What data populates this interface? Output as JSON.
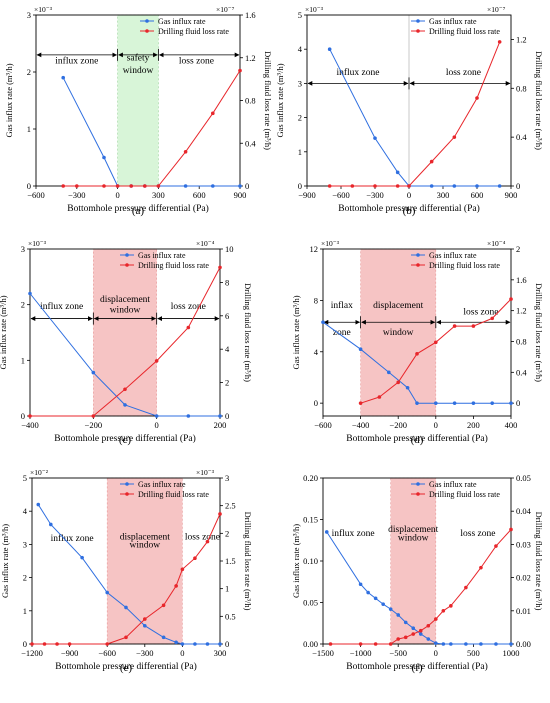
{
  "colors": {
    "gas": "#2f6fe0",
    "fluid": "#e8262b",
    "safety_shade": "#d8f5d8",
    "displacement_shade": "#f6c4c4",
    "axis": "#000000"
  },
  "chart_data": [
    {
      "id": "a",
      "type": "line",
      "caption": "(a)",
      "xlabel": "Bottomhole pressure differential (Pa)",
      "ylabel_left": "Gas influx rate (m³/h)",
      "ylabel_right": "Drilling fluid loss rate (m³/h)",
      "y_left_exp": "×10⁻³",
      "y_right_exp": "×10⁻⁷",
      "xlim": [
        -600,
        900
      ],
      "xticks": [
        -600,
        -300,
        0,
        300,
        600,
        900
      ],
      "ylim_left": [
        0,
        3
      ],
      "yticks_left": [
        0,
        1,
        2,
        3
      ],
      "ylim_right": [
        0,
        1.6
      ],
      "yticks_right": [
        0,
        0.4,
        0.8,
        1.2,
        1.6
      ],
      "shade": {
        "kind": "safety",
        "x": [
          0,
          300
        ]
      },
      "series": [
        {
          "name": "Gas influx rate",
          "axis": "left",
          "x": [
            -400,
            -100,
            0,
            100,
            200,
            300,
            500,
            700,
            900
          ],
          "y": [
            1.9,
            0.5,
            0,
            0,
            0,
            0,
            0,
            0,
            0
          ]
        },
        {
          "name": "Drilling fluid loss rate",
          "axis": "right",
          "x": [
            -400,
            -300,
            -100,
            0,
            100,
            200,
            300,
            500,
            700,
            900
          ],
          "y": [
            0,
            0,
            0,
            0,
            0,
            0,
            0,
            0.32,
            0.68,
            1.08
          ]
        }
      ],
      "arrow_rows": [
        {
          "y": 2.3,
          "xs": [
            -600,
            0,
            300,
            900
          ]
        }
      ],
      "zone_labels": [
        {
          "text": "influx zone",
          "x": -300,
          "y": 2.15
        },
        {
          "text": "safety",
          "x": 150,
          "y": 2.2
        },
        {
          "text": "window",
          "x": 150,
          "y": 1.98
        },
        {
          "text": "loss zone",
          "x": 580,
          "y": 2.15
        }
      ]
    },
    {
      "id": "b",
      "type": "line",
      "caption": "(b)",
      "xlabel": "Bottomhole pressure differential (Pa)",
      "ylabel_left": "Gas influx rate (m³/h)",
      "ylabel_right": "Drilling fluid loss rate (m³/h)",
      "y_left_exp": "×10⁻³",
      "y_right_exp": "×10⁻⁷",
      "xlim": [
        -900,
        900
      ],
      "xticks": [
        -900,
        -600,
        -300,
        0,
        300,
        600,
        900
      ],
      "ylim_left": [
        0,
        5
      ],
      "yticks_left": [
        0,
        1,
        2,
        3,
        4,
        5
      ],
      "ylim_right": [
        0,
        1.4
      ],
      "yticks_right": [
        0,
        0.4,
        0.8,
        1.2
      ],
      "shade": {
        "kind": "line",
        "x": [
          0,
          0
        ]
      },
      "series": [
        {
          "name": "Gas influx rate",
          "axis": "left",
          "x": [
            -700,
            -300,
            -100,
            0,
            200,
            400,
            600,
            800
          ],
          "y": [
            4.0,
            1.4,
            0.4,
            0,
            0,
            0,
            0,
            0
          ]
        },
        {
          "name": "Drilling fluid loss rate",
          "axis": "right",
          "x": [
            -700,
            -500,
            -300,
            -100,
            0,
            200,
            400,
            600,
            800
          ],
          "y": [
            0,
            0,
            0,
            0,
            0,
            0.2,
            0.4,
            0.72,
            1.18
          ]
        }
      ],
      "arrow_rows": [
        {
          "y": 3.0,
          "xs": [
            -900,
            0,
            900
          ]
        }
      ],
      "zone_labels": [
        {
          "text": "influx zone",
          "x": -450,
          "y": 3.25
        },
        {
          "text": "loss zone",
          "x": 480,
          "y": 3.25
        }
      ]
    },
    {
      "id": "c",
      "type": "line",
      "caption": "(c)",
      "xlabel": "Bottomhole pressure differential (Pa)",
      "ylabel_left": "Gas influx rate (m³/h)",
      "ylabel_right": "Drilling fluid loss rate (m³/h)",
      "y_left_exp": "×10⁻³",
      "y_right_exp": "×10⁻⁴",
      "xlim": [
        -400,
        200
      ],
      "xticks": [
        -400,
        -200,
        0,
        200
      ],
      "ylim_left": [
        0,
        3
      ],
      "yticks_left": [
        0,
        1,
        2,
        3
      ],
      "ylim_right": [
        0,
        10
      ],
      "yticks_right": [
        0,
        2,
        4,
        6,
        8,
        10
      ],
      "shade": {
        "kind": "displacement",
        "x": [
          -200,
          0
        ]
      },
      "series": [
        {
          "name": "Gas influx rate",
          "axis": "left",
          "x": [
            -400,
            -200,
            -100,
            0,
            100,
            200
          ],
          "y": [
            2.2,
            0.78,
            0.2,
            0,
            0,
            0
          ]
        },
        {
          "name": "Drilling fluid loss rate",
          "axis": "right",
          "x": [
            -400,
            -200,
            -100,
            0,
            100,
            200
          ],
          "y": [
            0,
            0,
            1.6,
            3.3,
            5.3,
            8.9
          ]
        }
      ],
      "arrow_rows": [
        {
          "y": 1.75,
          "xs": [
            -400,
            -200,
            0,
            200
          ]
        }
      ],
      "zone_labels": [
        {
          "text": "influx zone",
          "x": -300,
          "y": 1.92
        },
        {
          "text": "displacement",
          "x": -100,
          "y": 2.05
        },
        {
          "text": "window",
          "x": -100,
          "y": 1.86
        },
        {
          "text": "loss zone",
          "x": 100,
          "y": 1.92
        }
      ]
    },
    {
      "id": "d",
      "type": "line",
      "caption": "(d)",
      "xlabel": "Bottomhole pressure differential (Pa)",
      "ylabel_left": "Gas influx rate (m³/h)",
      "ylabel_right": "Drilling fluid loss rate (m³/h)",
      "y_left_exp": "×10⁻³",
      "y_right_exp": "×10⁻⁴",
      "xlim": [
        -600,
        400
      ],
      "xticks": [
        -600,
        -400,
        -200,
        0,
        200,
        400
      ],
      "ylim_left": [
        -1,
        12
      ],
      "yticks_left": [
        0,
        4,
        8,
        12
      ],
      "ylim_right": [
        -0.166667,
        2.0
      ],
      "yticks_right": [
        0,
        0.4,
        0.8,
        1.2,
        1.6,
        2.0
      ],
      "shade": {
        "kind": "displacement",
        "x": [
          -400,
          0
        ]
      },
      "series": [
        {
          "name": "Gas influx rate",
          "axis": "left",
          "x": [
            -600,
            -400,
            -250,
            -150,
            -100,
            0,
            100,
            200,
            300,
            400
          ],
          "y": [
            6.3,
            4.2,
            2.4,
            1.2,
            0,
            0,
            0,
            0,
            0,
            0
          ]
        },
        {
          "name": "Drilling fluid loss rate",
          "axis": "right",
          "x": [
            -400,
            -300,
            -200,
            -100,
            0,
            100,
            200,
            300,
            400
          ],
          "y": [
            0,
            0.08,
            0.27,
            0.64,
            0.79,
            1.0,
            1.0,
            1.1,
            1.35
          ]
        }
      ],
      "arrow_rows": [
        {
          "y": 6.3,
          "xs": [
            -600,
            -400,
            0,
            400
          ]
        }
      ],
      "zone_labels": [
        {
          "text": "inflax",
          "x": -500,
          "y": 7.4
        },
        {
          "text": "zone",
          "x": -500,
          "y": 5.3
        },
        {
          "text": "displacement",
          "x": -200,
          "y": 7.4
        },
        {
          "text": "window",
          "x": -200,
          "y": 5.3
        },
        {
          "text": "loss zone",
          "x": 240,
          "y": 6.9
        }
      ]
    },
    {
      "id": "e",
      "type": "line",
      "caption": "(e)",
      "xlabel": "Bottomhole pressure differential (Pa)",
      "ylabel_left": "Gas influx rate (m³/h)",
      "ylabel_right": "Drilling fluid loss rate (m³/h)",
      "y_left_exp": "×10⁻²",
      "y_right_exp": "×10⁻³",
      "xlim": [
        -1200,
        300
      ],
      "xticks": [
        -1200,
        -900,
        -600,
        -300,
        0,
        300
      ],
      "ylim_left": [
        0,
        5
      ],
      "yticks_left": [
        0,
        1,
        2,
        3,
        4,
        5
      ],
      "ylim_right": [
        0,
        3.0
      ],
      "yticks_right": [
        0,
        0.5,
        1.0,
        1.5,
        2.0,
        2.5,
        3.0
      ],
      "shade": {
        "kind": "displacement",
        "x": [
          -600,
          0
        ]
      },
      "series": [
        {
          "name": "Gas influx rate",
          "axis": "left",
          "x": [
            -1150,
            -1050,
            -800,
            -600,
            -450,
            -300,
            -150,
            -50,
            0,
            100,
            200,
            300
          ],
          "y": [
            4.2,
            3.6,
            2.6,
            1.55,
            1.1,
            0.55,
            0.2,
            0.05,
            0,
            0,
            0,
            0
          ]
        },
        {
          "name": "Drilling fluid loss rate",
          "axis": "right",
          "x": [
            -1200,
            -1100,
            -1000,
            -900,
            -600,
            -450,
            -300,
            -150,
            -50,
            0,
            100,
            200,
            300
          ],
          "y": [
            0,
            0,
            0,
            0,
            0,
            0.12,
            0.45,
            0.7,
            1.05,
            1.35,
            1.55,
            1.85,
            2.35
          ]
        }
      ],
      "arrow_rows": [],
      "zone_labels": [
        {
          "text": "influx zone",
          "x": -880,
          "y": 3.1
        },
        {
          "text": "displacement",
          "x": -300,
          "y": 3.15
        },
        {
          "text": "window",
          "x": -300,
          "y": 2.9
        },
        {
          "text": "loss zone",
          "x": 160,
          "y": 3.15
        }
      ]
    },
    {
      "id": "f",
      "type": "line",
      "caption": "(f)",
      "xlabel": "Bottomhole pressure differential (Pa)",
      "ylabel_left": "Gas influx rate (m³/h)",
      "ylabel_right": "Drilling fluid loss rate (m³/h)",
      "y_left_exp": "",
      "y_right_exp": "",
      "xlim": [
        -1500,
        1000
      ],
      "xticks": [
        -1500,
        -1000,
        -500,
        0,
        500,
        1000
      ],
      "ylim_left": [
        0,
        0.2
      ],
      "yticks_left": [
        0.0,
        0.05,
        0.1,
        0.15,
        0.2
      ],
      "ylim_right": [
        0,
        0.05
      ],
      "yticks_right": [
        0.0,
        0.01,
        0.02,
        0.03,
        0.04,
        0.05
      ],
      "shade": {
        "kind": "displacement",
        "x": [
          -600,
          0
        ]
      },
      "series": [
        {
          "name": "Gas influx rate",
          "axis": "left",
          "x": [
            -1450,
            -1000,
            -900,
            -800,
            -700,
            -600,
            -500,
            -400,
            -300,
            -200,
            -100,
            0,
            100,
            200,
            400,
            600,
            800,
            1000
          ],
          "y": [
            0.135,
            0.072,
            0.062,
            0.055,
            0.048,
            0.042,
            0.035,
            0.026,
            0.019,
            0.012,
            0.006,
            0.001,
            0,
            0,
            0,
            0,
            0,
            0
          ]
        },
        {
          "name": "Drilling fluid loss rate",
          "axis": "right",
          "x": [
            -1400,
            -1000,
            -800,
            -600,
            -500,
            -400,
            -300,
            -200,
            -100,
            0,
            100,
            200,
            400,
            600,
            800,
            1000
          ],
          "y": [
            0,
            0,
            0,
            0,
            0.0015,
            0.002,
            0.003,
            0.004,
            0.0055,
            0.0075,
            0.01,
            0.0115,
            0.017,
            0.023,
            0.0295,
            0.0345
          ]
        }
      ],
      "arrow_rows": [],
      "zone_labels": [
        {
          "text": "influx zone",
          "x": -1100,
          "y": 0.13
        },
        {
          "text": "displacement",
          "x": -300,
          "y": 0.135
        },
        {
          "text": "window",
          "x": -300,
          "y": 0.125
        },
        {
          "text": "loss zone",
          "x": 560,
          "y": 0.13
        }
      ]
    }
  ],
  "legend": {
    "gas_label": "Gas influx rate",
    "fluid_label": "Drilling fluid loss rate"
  }
}
